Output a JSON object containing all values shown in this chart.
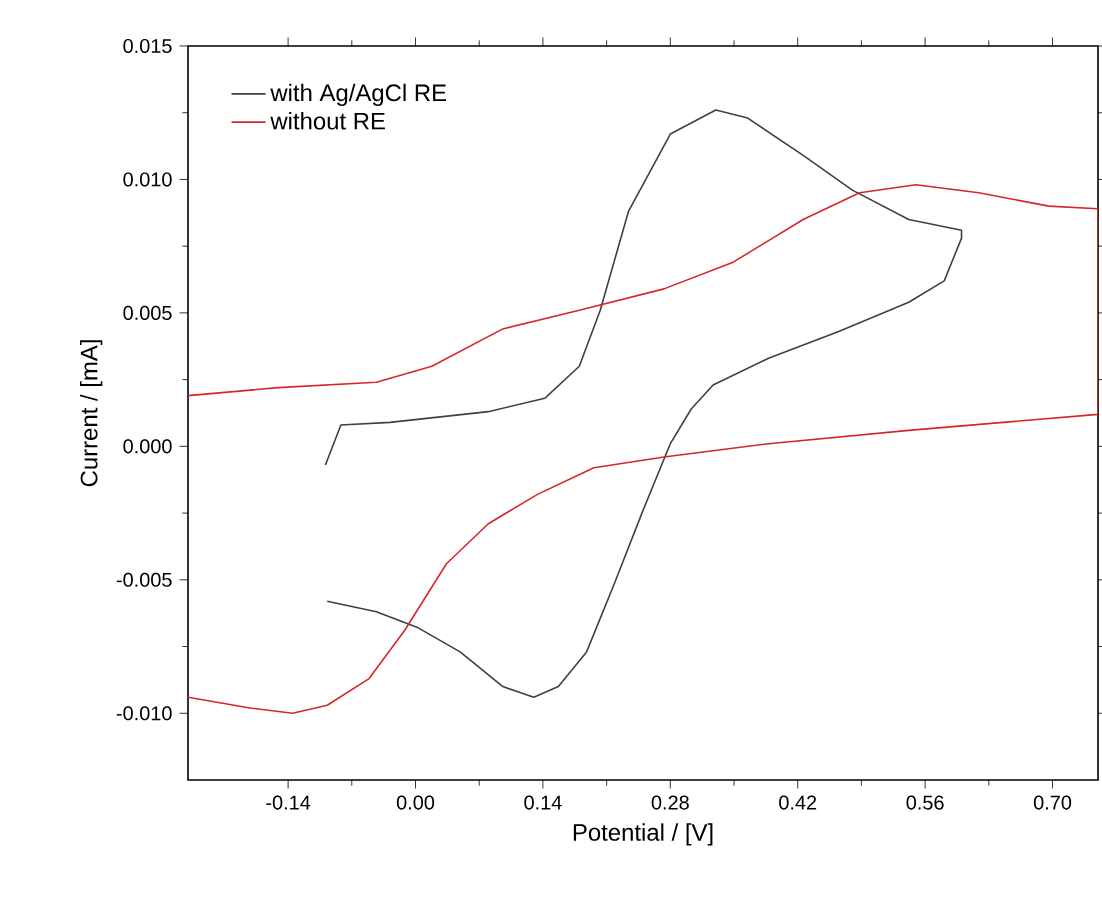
{
  "chart_data": {
    "type": "line",
    "xlabel": "Potential / [V]",
    "ylabel": "Current / [mA]",
    "xlim": [
      -0.25,
      0.75
    ],
    "xticks": [
      {
        "value": -0.14,
        "label": "-0.14"
      },
      {
        "value": 0,
        "label": "0.00"
      },
      {
        "value": 0.14,
        "label": "0.14"
      },
      {
        "value": 0.28,
        "label": "0.28"
      },
      {
        "value": 0.42,
        "label": "0.42"
      },
      {
        "value": 0.56,
        "label": "0.56"
      },
      {
        "value": 0.7,
        "label": "0.70"
      }
    ],
    "ylim": [
      -0.0125,
      0.015
    ],
    "yticks": [
      {
        "value": -0.01,
        "label": "-0.010"
      },
      {
        "value": -0.005,
        "label": "-0.005"
      },
      {
        "value": 0,
        "label": "0.000"
      },
      {
        "value": 0.005,
        "label": "0.005"
      },
      {
        "value": 0.01,
        "label": "0.010"
      },
      {
        "value": 0.015,
        "label": "0.015"
      }
    ],
    "legend": "top left",
    "grid": false,
    "marker": "none",
    "line_style": "solid",
    "series": [
      {
        "name": "with Ag/AgCl RE",
        "color": "#404040",
        "x": [
          -0.099,
          -0.082,
          -0.028,
          0.08,
          0.142,
          0.18,
          0.203,
          0.234,
          0.28,
          0.33,
          0.365,
          0.426,
          0.48,
          0.542,
          0.6,
          0.6,
          0.581,
          0.542,
          0.465,
          0.388,
          0.327,
          0.303,
          0.28,
          0.25,
          0.219,
          0.188,
          0.157,
          0.13,
          0.096,
          0.049,
          0.003,
          -0.043,
          -0.097
        ],
        "values": [
          -0.0007,
          0.0008,
          0.0009,
          0.0013,
          0.0018,
          0.003,
          0.0051,
          0.0088,
          0.0117,
          0.0126,
          0.0123,
          0.0109,
          0.0096,
          0.0085,
          0.0081,
          0.0078,
          0.0062,
          0.0054,
          0.0043,
          0.0033,
          0.0023,
          0.0014,
          0.0001,
          -0.0024,
          -0.0051,
          -0.0077,
          -0.009,
          -0.0094,
          -0.009,
          -0.0077,
          -0.0068,
          -0.0062,
          -0.0058
        ]
      },
      {
        "name": "without RE",
        "color": "#d62728",
        "x": [
          -0.25,
          -0.151,
          -0.043,
          0.018,
          0.096,
          0.18,
          0.273,
          0.349,
          0.426,
          0.488,
          0.55,
          0.619,
          0.696,
          0.75,
          0.75,
          0.542,
          0.388,
          0.273,
          0.196,
          0.134,
          0.08,
          0.034,
          -0.012,
          -0.051,
          -0.097,
          -0.135,
          -0.182,
          -0.25
        ],
        "values": [
          0.0019,
          0.0022,
          0.0024,
          0.003,
          0.0044,
          0.0051,
          0.0059,
          0.0069,
          0.0085,
          0.0095,
          0.0098,
          0.0095,
          0.009,
          0.0089,
          0.0012,
          0.0006,
          0.0001,
          -0.0004,
          -0.0008,
          -0.0018,
          -0.0029,
          -0.0044,
          -0.0069,
          -0.0087,
          -0.0097,
          -0.01,
          -0.0098,
          -0.0094
        ]
      }
    ]
  }
}
